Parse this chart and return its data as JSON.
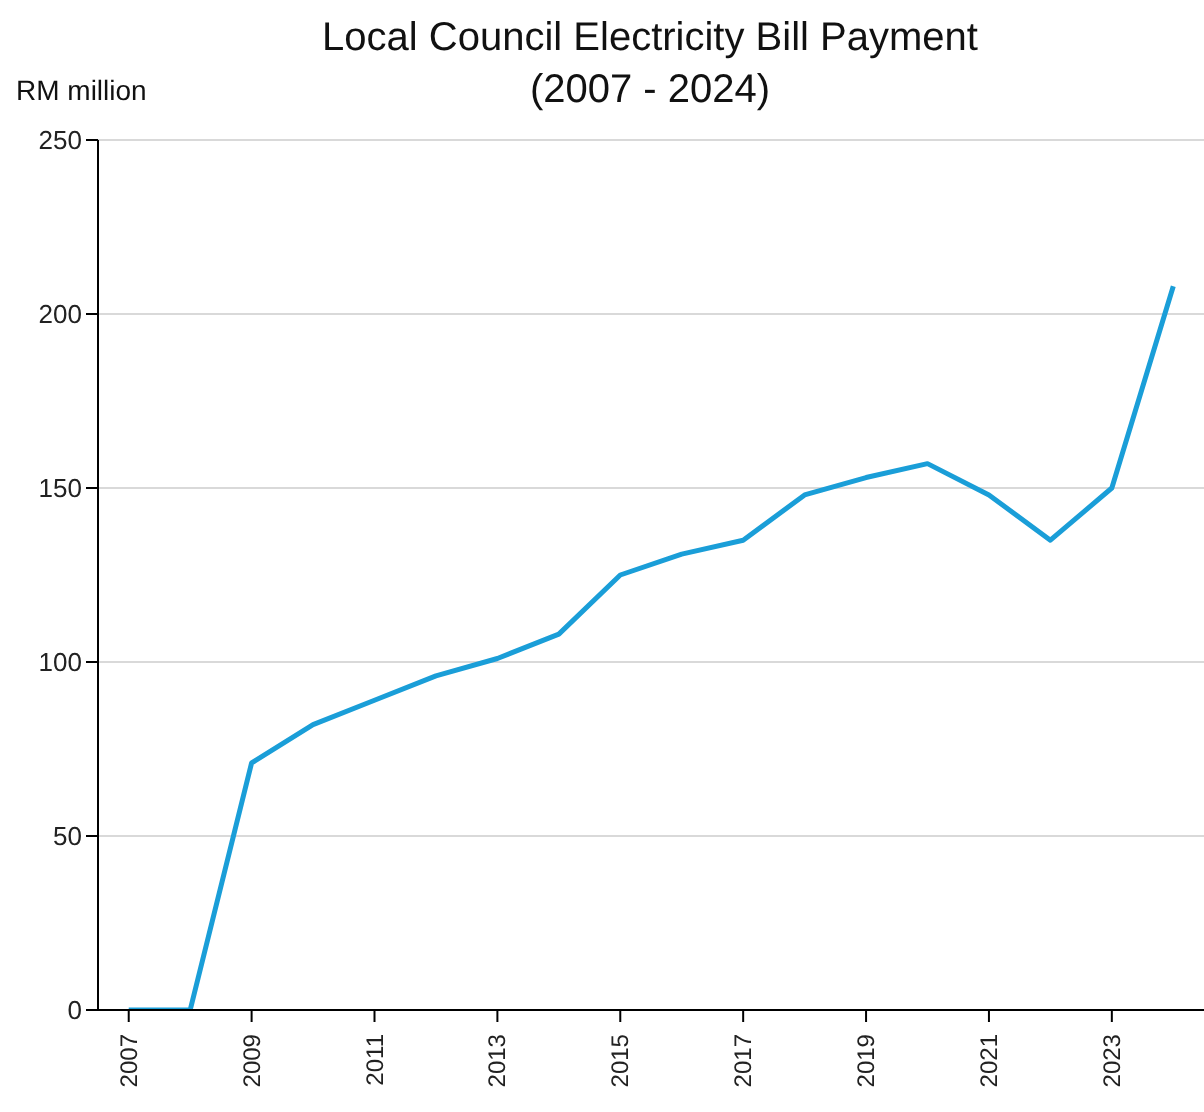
{
  "chart_data": {
    "type": "line",
    "title": "Local Council Electricity Bill Payment\n(2007 - 2024)",
    "ylabel": "RM million",
    "x": [
      2007,
      2008,
      2009,
      2010,
      2011,
      2012,
      2013,
      2014,
      2015,
      2016,
      2017,
      2018,
      2019,
      2020,
      2021,
      2022,
      2023,
      2024
    ],
    "series": [
      {
        "color": "#1a9ed8",
        "values": [
          0,
          0,
          71,
          82,
          89,
          96,
          101,
          108,
          125,
          131,
          135,
          148,
          153,
          157,
          148,
          135,
          150,
          208
        ]
      }
    ],
    "xlim": [
      2006.5,
      2024.5
    ],
    "xticks": [
      2007,
      2009,
      2011,
      2013,
      2015,
      2017,
      2019,
      2021,
      2023
    ],
    "ylim": [
      0,
      250
    ],
    "yticks": [
      0,
      50,
      100,
      150,
      200,
      250
    ],
    "grid": "y",
    "marker": "none",
    "line_style": "solid"
  }
}
